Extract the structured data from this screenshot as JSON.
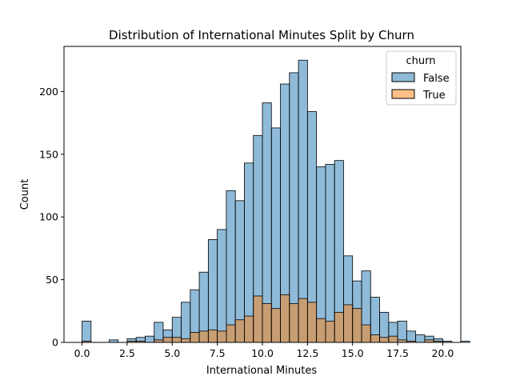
{
  "chart_data": {
    "type": "histogram",
    "title": "Distribution of International Minutes Split by Churn",
    "xlabel": "International Minutes",
    "ylabel": "Count",
    "xlim": [
      -1.0,
      21.0
    ],
    "ylim": [
      0,
      236
    ],
    "xticks": [
      "0.0",
      "2.5",
      "5.0",
      "7.5",
      "10.0",
      "12.5",
      "15.0",
      "17.5",
      "20.0"
    ],
    "xtick_values": [
      0,
      2.5,
      5,
      7.5,
      10,
      12.5,
      15,
      17.5,
      20
    ],
    "yticks": [
      "0",
      "50",
      "100",
      "150",
      "200"
    ],
    "ytick_values": [
      0,
      50,
      100,
      150,
      200
    ],
    "bin_start": 0.0,
    "bin_width": 0.5,
    "grid": false,
    "legend": {
      "title": "churn",
      "position": "top-right"
    },
    "series": [
      {
        "name": "False",
        "color": "#1f77b4",
        "values": [
          17,
          0,
          0,
          2,
          0,
          3,
          4,
          5,
          16,
          10,
          20,
          32,
          42,
          56,
          82,
          90,
          121,
          113,
          143,
          165,
          191,
          171,
          206,
          215,
          225,
          184,
          140,
          142,
          145,
          69,
          49,
          57,
          36,
          24,
          16,
          17,
          9,
          6,
          5,
          3,
          1,
          0,
          1
        ]
      },
      {
        "name": "True",
        "color": "#ff7f0e",
        "values": [
          1,
          0,
          0,
          0,
          0,
          1,
          1,
          0,
          2,
          4,
          4,
          3,
          8,
          9,
          10,
          9,
          14,
          18,
          21,
          37,
          31,
          27,
          38,
          31,
          35,
          32,
          19,
          17,
          24,
          30,
          27,
          14,
          6,
          4,
          5,
          2,
          1,
          0,
          2,
          1,
          0,
          0,
          0
        ]
      }
    ]
  }
}
